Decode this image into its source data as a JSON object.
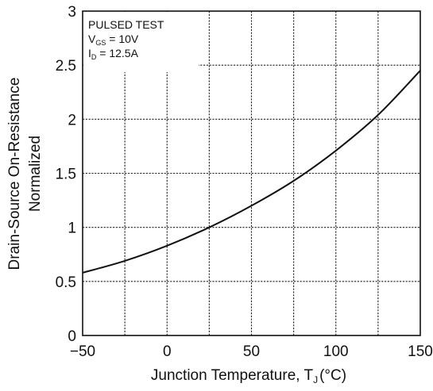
{
  "chart_data": {
    "type": "line",
    "xlabel_main": "Junction Temperature, T",
    "xlabel_sub": "J",
    "xlabel_unit": "(°C)",
    "ylabel_line1": "Drain-Source On-Resistance",
    "ylabel_line2": "Normalized",
    "xlim": [
      -50,
      150
    ],
    "ylim": [
      0,
      3
    ],
    "x_ticks": [
      -50,
      -25,
      0,
      25,
      50,
      75,
      100,
      125,
      150
    ],
    "x_tick_labels": [
      "−50",
      "",
      "0",
      "",
      "50",
      "",
      "100",
      "",
      "150"
    ],
    "y_ticks": [
      0,
      0.5,
      1,
      1.5,
      2,
      2.5,
      3
    ],
    "y_tick_labels": [
      "0",
      "0.5",
      "1",
      "1.5",
      "2",
      "2.5",
      "3"
    ],
    "grid": true,
    "annotation": {
      "line1": "PULSED TEST",
      "line2_main": "V",
      "line2_sub": "GS",
      "line2_rest": " = 10V",
      "line3_main": "I",
      "line3_sub": "D",
      "line3_rest": " = 12.5A"
    },
    "series": [
      {
        "x": [
          -50,
          -25,
          0,
          25,
          50,
          75,
          100,
          125,
          150
        ],
        "y": [
          0.58,
          0.69,
          0.83,
          1.0,
          1.2,
          1.43,
          1.71,
          2.04,
          2.45
        ]
      }
    ]
  }
}
